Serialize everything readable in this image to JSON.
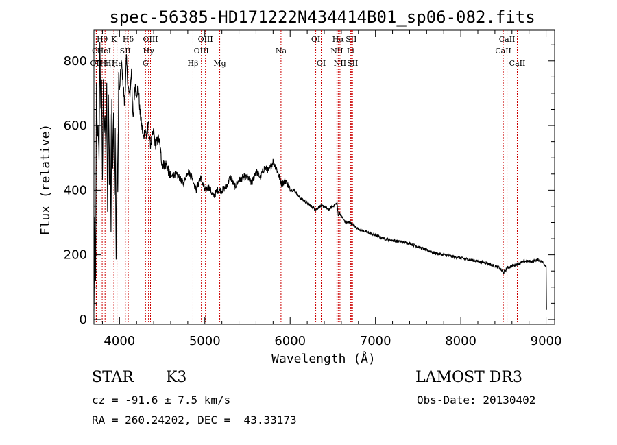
{
  "chart_data": {
    "type": "line",
    "title": "spec-56385-HD171222N434414B01_sp06-082.fits",
    "xlabel": "Wavelength (Å)",
    "ylabel": "Flux (relative)",
    "xlim": [
      3700,
      9100
    ],
    "ylim": [
      -15,
      895
    ],
    "xticks": [
      4000,
      5000,
      6000,
      7000,
      8000,
      9000
    ],
    "yticks": [
      0,
      200,
      400,
      600,
      800
    ],
    "grid": false,
    "series": [
      {
        "x": [
          3700,
          3710,
          3720,
          3730,
          3740,
          3750,
          3760,
          3770,
          3780,
          3790,
          3800,
          3810,
          3820,
          3830,
          3840,
          3850,
          3860,
          3870,
          3880,
          3890,
          3900,
          3910,
          3920,
          3930,
          3940,
          3950,
          3960,
          3970,
          3980,
          3990,
          4000,
          4020,
          4040,
          4060,
          4080,
          4100,
          4120,
          4140,
          4160,
          4180,
          4200,
          4220,
          4240,
          4260,
          4280,
          4300,
          4320,
          4340,
          4360,
          4380,
          4400,
          4420,
          4440,
          4460,
          4480,
          4500,
          4550,
          4600,
          4650,
          4700,
          4750,
          4800,
          4850,
          4900,
          4950,
          5000,
          5050,
          5100,
          5150,
          5200,
          5250,
          5300,
          5350,
          5400,
          5450,
          5500,
          5550,
          5600,
          5650,
          5700,
          5750,
          5800,
          5850,
          5900,
          5950,
          6000,
          6050,
          6100,
          6150,
          6200,
          6250,
          6300,
          6350,
          6400,
          6450,
          6500,
          6550,
          6563,
          6580,
          6600,
          6650,
          6700,
          6750,
          6800,
          6900,
          7000,
          7100,
          7200,
          7300,
          7400,
          7500,
          7600,
          7700,
          7800,
          7900,
          8000,
          8100,
          8200,
          8300,
          8400,
          8450,
          8500,
          8550,
          8600,
          8650,
          8700,
          8750,
          8800,
          8850,
          8900,
          8950,
          9000,
          9005
        ],
        "y": [
          20,
          300,
          130,
          720,
          560,
          610,
          480,
          860,
          660,
          730,
          420,
          750,
          560,
          640,
          500,
          720,
          330,
          700,
          420,
          620,
          280,
          700,
          470,
          640,
          380,
          590,
          180,
          560,
          380,
          760,
          700,
          800,
          740,
          660,
          810,
          720,
          690,
          770,
          610,
          720,
          700,
          720,
          640,
          600,
          560,
          590,
          560,
          610,
          540,
          560,
          580,
          540,
          550,
          560,
          520,
          480,
          480,
          440,
          450,
          440,
          420,
          460,
          440,
          400,
          440,
          400,
          410,
          380,
          400,
          400,
          410,
          440,
          410,
          430,
          440,
          440,
          420,
          460,
          440,
          470,
          460,
          490,
          460,
          420,
          430,
          400,
          400,
          380,
          370,
          360,
          350,
          340,
          350,
          350,
          340,
          350,
          360,
          320,
          330,
          320,
          300,
          300,
          290,
          280,
          270,
          260,
          250,
          245,
          240,
          235,
          225,
          215,
          205,
          200,
          195,
          190,
          185,
          180,
          175,
          165,
          160,
          145,
          160,
          165,
          170,
          175,
          180,
          180,
          180,
          185,
          180,
          165,
          30
        ]
      }
    ],
    "lines": [
      {
        "label": "Hθ",
        "x": 3797,
        "row": 0
      },
      {
        "label": "OII",
        "x": 3727,
        "row": 2
      },
      {
        "label": "OI",
        "x": 3730,
        "row": 1
      },
      {
        "label": "HeI",
        "x": 3819,
        "row": 1
      },
      {
        "label": "Hη",
        "x": 3835,
        "row": 2
      },
      {
        "label": "K",
        "x": 3934,
        "row": 0
      },
      {
        "label": "Hζ",
        "x": 3889,
        "row": 2
      },
      {
        "label": "SII",
        "x": 4068,
        "row": 1
      },
      {
        "label": "Hδ",
        "x": 4102,
        "row": 0
      },
      {
        "label": "Hε",
        "x": 3970,
        "row": 2
      },
      {
        "label": "OIII",
        "x": 4363,
        "row": 0
      },
      {
        "label": "Hγ",
        "x": 4340,
        "row": 1
      },
      {
        "label": "G",
        "x": 4305,
        "row": 2
      },
      {
        "label": "OIII",
        "x": 5007,
        "row": 0
      },
      {
        "label": "OIII",
        "x": 4959,
        "row": 1
      },
      {
        "label": "Hβ",
        "x": 4861,
        "row": 2
      },
      {
        "label": "Mg",
        "x": 5175,
        "row": 2
      },
      {
        "label": "Na",
        "x": 5893,
        "row": 1
      },
      {
        "label": "OI",
        "x": 6300,
        "row": 0
      },
      {
        "label": "OI",
        "x": 6364,
        "row": 2
      },
      {
        "label": "Hα",
        "x": 6563,
        "row": 0
      },
      {
        "label": "SII",
        "x": 6716,
        "row": 0
      },
      {
        "label": "NII",
        "x": 6548,
        "row": 1
      },
      {
        "label": "Li",
        "x": 6708,
        "row": 1
      },
      {
        "label": "NII",
        "x": 6584,
        "row": 2
      },
      {
        "label": "SII",
        "x": 6731,
        "row": 2
      },
      {
        "label": "CaII",
        "x": 8542,
        "row": 0
      },
      {
        "label": "CaII",
        "x": 8498,
        "row": 1
      },
      {
        "label": "CaII",
        "x": 8662,
        "row": 2
      }
    ]
  },
  "info": {
    "object_class": "STAR",
    "subclass": "K3",
    "survey": "LAMOST DR3",
    "velocity": "cz = -91.6 ± 7.5 km/s",
    "obs_date": "Obs-Date: 20130402",
    "coords": "RA = 260.24202, DEC =  43.33173"
  }
}
